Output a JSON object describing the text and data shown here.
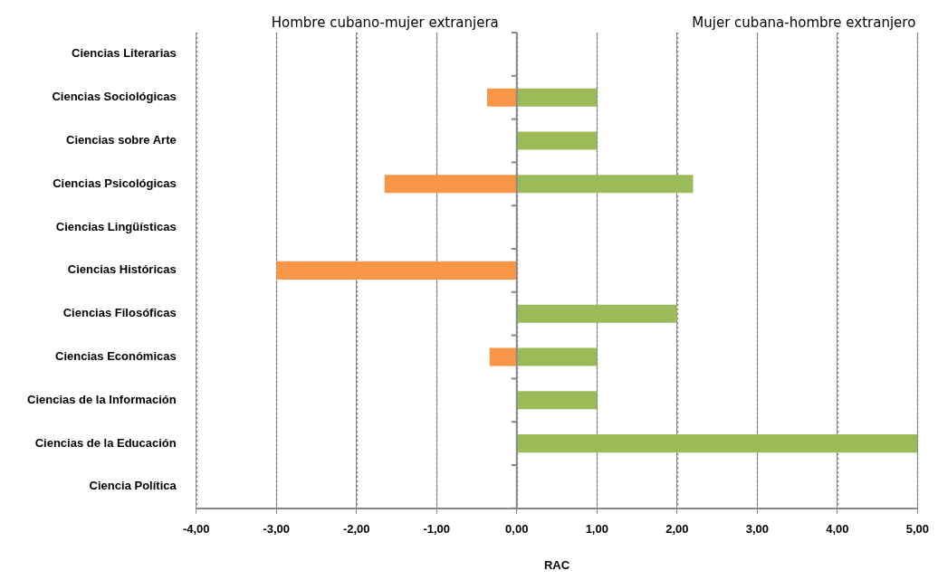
{
  "chart_data": {
    "type": "bar",
    "orientation": "horizontal",
    "stacked": true,
    "xlabel": "RAC",
    "categories": [
      "Ciencias Literarias",
      "Ciencias Sociológicas",
      "Ciencias sobre Arte",
      "Ciencias Psicológicas",
      "Ciencias Lingüísticas",
      "Ciencias Históricas",
      "Ciencias Filosóficas",
      "Ciencias Económicas",
      "Ciencias de la Información",
      "Ciencias de la Educación",
      "Ciencia Política"
    ],
    "series": [
      {
        "color": "#9bbb59",
        "values": [
          null,
          1.0,
          1.0,
          2.2,
          null,
          null,
          2.0,
          1.0,
          1.0,
          5.0,
          null
        ]
      },
      {
        "color": "#f79646",
        "values": [
          null,
          -0.37,
          null,
          -1.65,
          null,
          -3.0,
          null,
          -0.34,
          null,
          null,
          null
        ]
      }
    ],
    "xlim": [
      -4,
      5
    ],
    "xticks": [
      {
        "value": -4,
        "label": "-4,00"
      },
      {
        "value": -3,
        "label": "-3,00"
      },
      {
        "value": -2,
        "label": "-2,00"
      },
      {
        "value": -1,
        "label": "-1,00"
      },
      {
        "value": 0,
        "label": "0,00"
      },
      {
        "value": 1,
        "label": "1,00"
      },
      {
        "value": 2,
        "label": "2,00"
      },
      {
        "value": 3,
        "label": "3,00"
      },
      {
        "value": 4,
        "label": "4,00"
      },
      {
        "value": 5,
        "label": "5,00"
      }
    ],
    "grid": "x",
    "legend": false,
    "annotations": [
      "Hombre cubano-mujer extranjera",
      "Mujer cubana-hombre extranjero"
    ]
  }
}
